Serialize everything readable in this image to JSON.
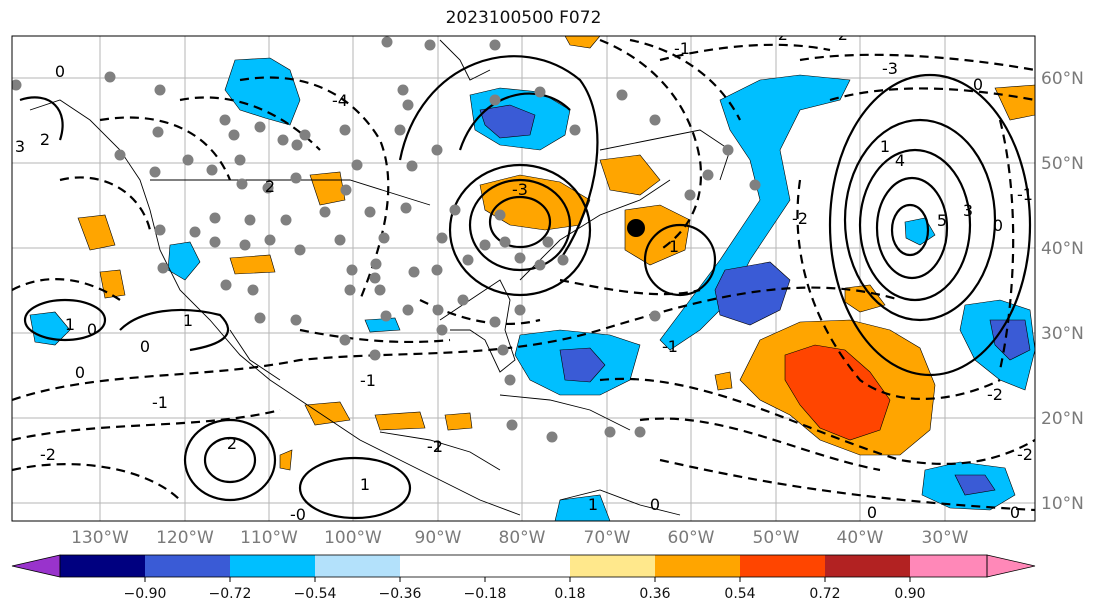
{
  "title": "2023100500 F072",
  "colors": {
    "neg_090": "#9933cc",
    "neg_072": "#000080",
    "neg_054": "#3a5bd6",
    "neg_036": "#00bfff",
    "neg_018": "#b3e1fb",
    "zero": "#ffffff",
    "pos_018": "#ffe88c",
    "pos_036": "#ffa500",
    "pos_054": "#ff4500",
    "pos_072": "#b22222",
    "pos_090": "#ff88b8",
    "station": "#808080",
    "contour": "#000000",
    "grid": "#b5b5b5"
  },
  "lon_labels": [
    "130°W",
    "120°W",
    "110°W",
    "100°W",
    "90°W",
    "80°W",
    "70°W",
    "60°W",
    "50°W",
    "40°W",
    "30°W"
  ],
  "lat_labels": [
    "60°N",
    "50°N",
    "40°N",
    "30°N",
    "20°N",
    "10°N"
  ],
  "colorbar": {
    "ticks": [
      "−0.90",
      "−0.72",
      "−0.54",
      "−0.36",
      "−0.18",
      "0.18",
      "0.36",
      "0.54",
      "0.72",
      "0.90"
    ],
    "bins": [
      "#9933cc",
      "#000080",
      "#3a5bd6",
      "#00bfff",
      "#b3e1fb",
      "#ffffff",
      "#ffe88c",
      "#ffa500",
      "#ff4500",
      "#b22222",
      "#ff88b8"
    ]
  },
  "contour_labels": {
    "l1": "0",
    "l2": "3",
    "l3": "2",
    "l4": "1",
    "l5": "2",
    "l6": "-4",
    "l7": "-3",
    "l8": "0",
    "l9": "0",
    "l10": "-1",
    "l11": "1",
    "l12": "0",
    "l13": "-2",
    "l14": "-1",
    "l15": "2",
    "l16": "-2",
    "l17": "1",
    "l18": "-0",
    "l19": "1",
    "l20": "-1",
    "l21": "-2",
    "l22": "4",
    "l23": "5",
    "l24": "3",
    "l25": "1",
    "l26": "0",
    "l27": "-1",
    "l28": "-2",
    "l29": "0",
    "l30": "-3",
    "l31": "-1",
    "l32": "0",
    "l33": "1",
    "l34": "-1",
    "l35": "-2",
    "l36": "0",
    "l37": "0",
    "l38": "-2",
    "l39": "-2"
  }
}
